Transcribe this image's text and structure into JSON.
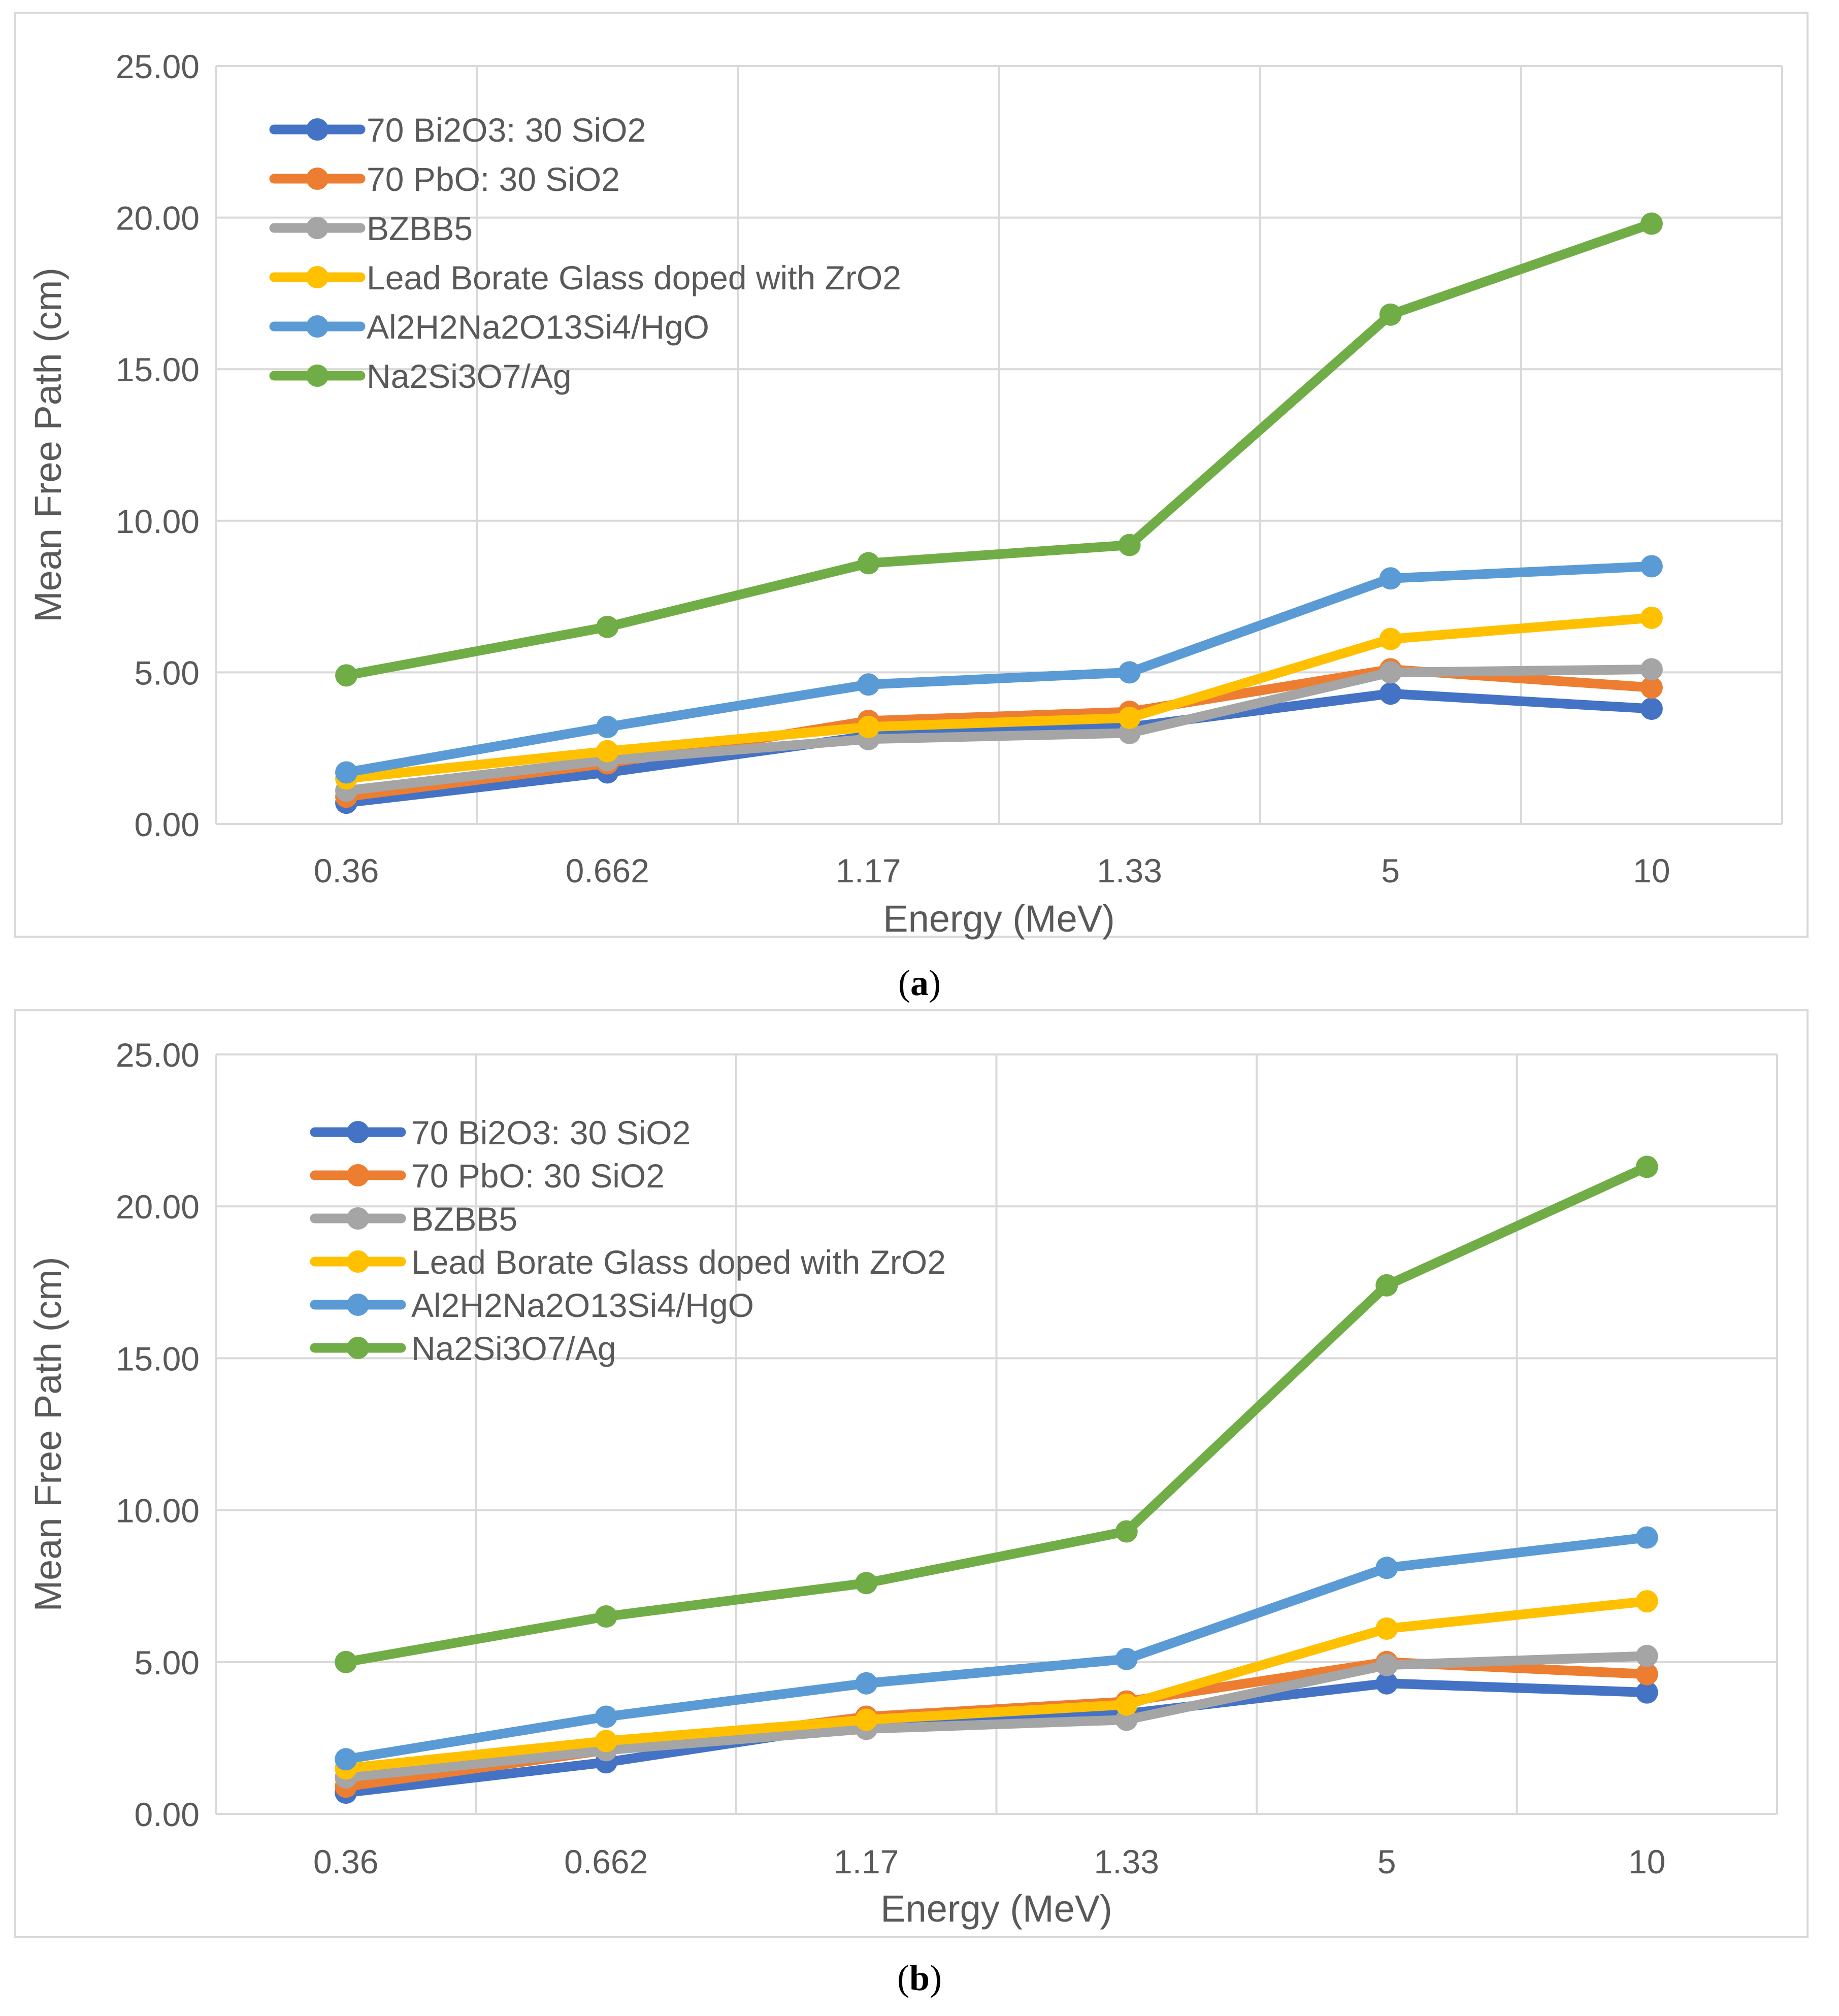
{
  "chart_data": [
    {
      "type": "line",
      "panel": "a",
      "panel_label": "a",
      "title": "",
      "xlabel": "Energy (MeV)",
      "ylabel": "Mean Free Path (cm)",
      "categories": [
        "0.36",
        "0.662",
        "1.17",
        "1.33",
        "5",
        "10"
      ],
      "ylim": [
        0,
        25
      ],
      "yticks": [
        "0.00",
        "5.00",
        "10.00",
        "15.00",
        "20.00",
        "25.00"
      ],
      "ytick_values": [
        0,
        5,
        10,
        15,
        20,
        25
      ],
      "grid": true,
      "legend_position": "top-left",
      "series": [
        {
          "name": "70 Bi2O3: 30 SiO2",
          "color": "#4472C4",
          "values": [
            0.7,
            1.7,
            2.9,
            3.2,
            4.3,
            3.8
          ]
        },
        {
          "name": "70 PbO: 30 SiO2",
          "color": "#ED7D31",
          "values": [
            0.9,
            2.0,
            3.4,
            3.7,
            5.1,
            4.5
          ]
        },
        {
          "name": "BZBB5",
          "color": "#A5A5A5",
          "values": [
            1.1,
            2.1,
            2.8,
            3.0,
            5.0,
            5.1
          ]
        },
        {
          "name": "Lead Borate Glass doped with ZrO2",
          "color": "#FFC000",
          "values": [
            1.5,
            2.4,
            3.2,
            3.5,
            6.1,
            6.8
          ]
        },
        {
          "name": "Al2H2Na2O13Si4/HgO",
          "color": "#5B9BD5",
          "values": [
            1.7,
            3.2,
            4.6,
            5.0,
            8.1,
            8.5
          ]
        },
        {
          "name": "Na2Si3O7/Ag",
          "color": "#70AD47",
          "values": [
            4.9,
            6.5,
            8.6,
            9.2,
            16.8,
            19.8
          ]
        }
      ]
    },
    {
      "type": "line",
      "panel": "b",
      "panel_label": "b",
      "title": "",
      "xlabel": "Energy (MeV)",
      "ylabel": "Mean Free Path (cm)",
      "categories": [
        "0.36",
        "0.662",
        "1.17",
        "1.33",
        "5",
        "10"
      ],
      "ylim": [
        0,
        25
      ],
      "yticks": [
        "0.00",
        "5.00",
        "10.00",
        "15.00",
        "20.00",
        "25.00"
      ],
      "ytick_values": [
        0,
        5,
        10,
        15,
        20,
        25
      ],
      "grid": true,
      "legend_position": "top-left",
      "series": [
        {
          "name": "70 Bi2O3: 30 SiO2",
          "color": "#4472C4",
          "values": [
            0.7,
            1.7,
            3.0,
            3.3,
            4.3,
            4.0
          ]
        },
        {
          "name": "70 PbO: 30 SiO2",
          "color": "#ED7D31",
          "values": [
            0.9,
            2.1,
            3.2,
            3.7,
            5.0,
            4.6
          ]
        },
        {
          "name": "BZBB5",
          "color": "#A5A5A5",
          "values": [
            1.2,
            2.1,
            2.8,
            3.1,
            4.9,
            5.2
          ]
        },
        {
          "name": "Lead Borate Glass doped with ZrO2",
          "color": "#FFC000",
          "values": [
            1.5,
            2.4,
            3.1,
            3.6,
            6.1,
            7.0
          ]
        },
        {
          "name": "Al2H2Na2O13Si4/HgO",
          "color": "#5B9BD5",
          "values": [
            1.8,
            3.2,
            4.3,
            5.1,
            8.1,
            9.1
          ]
        },
        {
          "name": "Na2Si3O7/Ag",
          "color": "#70AD47",
          "values": [
            5.0,
            6.5,
            7.6,
            9.3,
            17.4,
            21.3
          ]
        }
      ]
    }
  ]
}
